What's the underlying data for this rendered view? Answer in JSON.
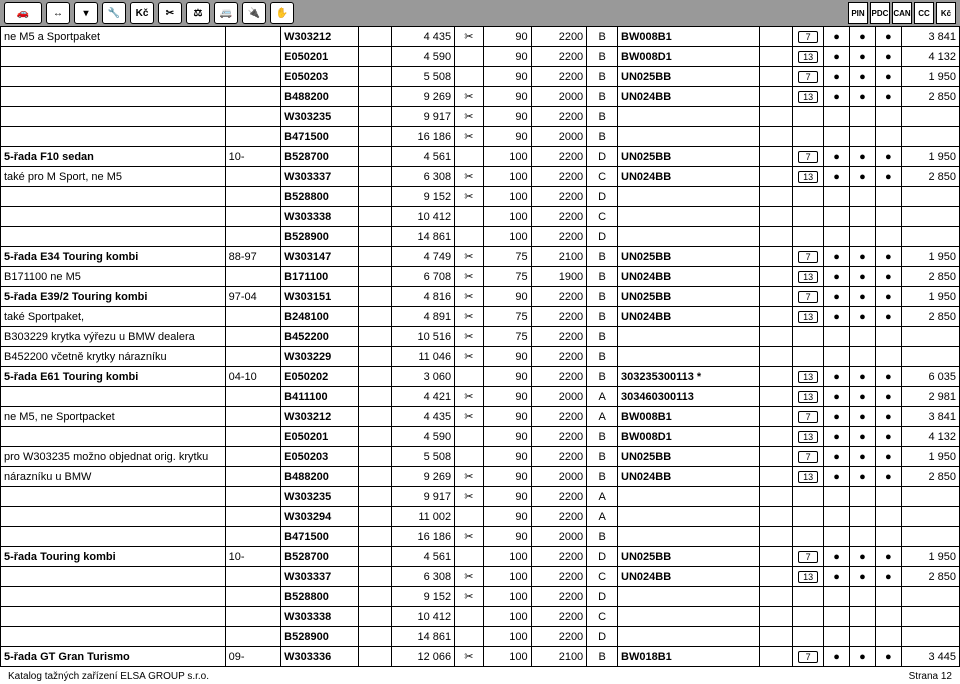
{
  "page_label": "Strana 12",
  "footer_text": "Katalog tažných zařízení ELSA GROUP s.r.o.",
  "header_tags": [
    "PIN",
    "PDC",
    "CAN",
    "CC",
    "Kč"
  ],
  "rows": [
    {
      "name": "ne M5 a Sportpaket",
      "year": "",
      "code": "W303212",
      "price": "4 435",
      "sc": "1",
      "w1": "90",
      "w2": "2200",
      "l": "B",
      "ref": "BW008B1",
      "n": "7",
      "d1": "●",
      "d2": "●",
      "d3": "●",
      "p2": "3 841"
    },
    {
      "name": "",
      "year": "",
      "code": "E050201",
      "price": "4 590",
      "sc": "",
      "w1": "90",
      "w2": "2200",
      "l": "B",
      "ref": "BW008D1",
      "n": "13",
      "d1": "●",
      "d2": "●",
      "d3": "●",
      "p2": "4 132"
    },
    {
      "name": "",
      "year": "",
      "code": "E050203",
      "price": "5 508",
      "sc": "",
      "w1": "90",
      "w2": "2200",
      "l": "B",
      "ref": "UN025BB",
      "n": "7",
      "d1": "●",
      "d2": "●",
      "d3": "●",
      "p2": "1 950"
    },
    {
      "name": "",
      "year": "",
      "code": "B488200",
      "price": "9 269",
      "sc": "1",
      "w1": "90",
      "w2": "2000",
      "l": "B",
      "ref": "UN024BB",
      "n": "13",
      "d1": "●",
      "d2": "●",
      "d3": "●",
      "p2": "2 850"
    },
    {
      "name": "",
      "year": "",
      "code": "W303235",
      "price": "9 917",
      "sc": "1",
      "w1": "90",
      "w2": "2200",
      "l": "B",
      "ref": "",
      "n": "",
      "d1": "",
      "d2": "",
      "d3": "",
      "p2": ""
    },
    {
      "name": "",
      "year": "",
      "code": "B471500",
      "price": "16 186",
      "sc": "1",
      "w1": "90",
      "w2": "2000",
      "l": "B",
      "ref": "",
      "n": "",
      "d1": "",
      "d2": "",
      "d3": "",
      "p2": ""
    },
    {
      "name": "5-řada F10 sedan",
      "bold": 1,
      "year": "10-",
      "code": "B528700",
      "price": "4 561",
      "sc": "",
      "w1": "100",
      "w2": "2200",
      "l": "D",
      "ref": "UN025BB",
      "n": "7",
      "d1": "●",
      "d2": "●",
      "d3": "●",
      "p2": "1 950"
    },
    {
      "name": "také pro M Sport, ne M5",
      "year": "",
      "code": "W303337",
      "price": "6 308",
      "sc": "1",
      "w1": "100",
      "w2": "2200",
      "l": "C",
      "ref": "UN024BB",
      "n": "13",
      "d1": "●",
      "d2": "●",
      "d3": "●",
      "p2": "2 850"
    },
    {
      "name": "",
      "year": "",
      "code": "B528800",
      "price": "9 152",
      "sc": "1",
      "w1": "100",
      "w2": "2200",
      "l": "D",
      "ref": "",
      "n": "",
      "d1": "",
      "d2": "",
      "d3": "",
      "p2": ""
    },
    {
      "name": "",
      "year": "",
      "code": "W303338",
      "price": "10 412",
      "sc": "",
      "w1": "100",
      "w2": "2200",
      "l": "C",
      "ref": "",
      "n": "",
      "d1": "",
      "d2": "",
      "d3": "",
      "p2": ""
    },
    {
      "name": "",
      "year": "",
      "code": "B528900",
      "price": "14 861",
      "sc": "",
      "w1": "100",
      "w2": "2200",
      "l": "D",
      "ref": "",
      "n": "",
      "d1": "",
      "d2": "",
      "d3": "",
      "p2": ""
    },
    {
      "name": "5-řada E34 Touring kombi",
      "bold": 1,
      "year": "88-97",
      "code": "W303147",
      "price": "4 749",
      "sc": "1",
      "w1": "75",
      "w2": "2100",
      "l": "B",
      "ref": "UN025BB",
      "n": "7",
      "d1": "●",
      "d2": "●",
      "d3": "●",
      "p2": "1 950"
    },
    {
      "name": "B171100 ne M5",
      "year": "",
      "code": "B171100",
      "price": "6 708",
      "sc": "1",
      "w1": "75",
      "w2": "1900",
      "l": "B",
      "ref": "UN024BB",
      "n": "13",
      "d1": "●",
      "d2": "●",
      "d3": "●",
      "p2": "2 850"
    },
    {
      "name": "5-řada E39/2 Touring kombi",
      "bold": 1,
      "year": "97-04",
      "code": "W303151",
      "price": "4 816",
      "sc": "1",
      "w1": "90",
      "w2": "2200",
      "l": "B",
      "ref": "UN025BB",
      "n": "7",
      "d1": "●",
      "d2": "●",
      "d3": "●",
      "p2": "1 950"
    },
    {
      "name": "také Sportpaket,",
      "year": "",
      "code": "B248100",
      "price": "4 891",
      "sc": "1",
      "w1": "75",
      "w2": "2200",
      "l": "B",
      "ref": "UN024BB",
      "n": "13",
      "d1": "●",
      "d2": "●",
      "d3": "●",
      "p2": "2 850"
    },
    {
      "name": "B303229 krytka výřezu u BMW dealera",
      "year": "",
      "code": "B452200",
      "price": "10 516",
      "sc": "1",
      "w1": "75",
      "w2": "2200",
      "l": "B",
      "ref": "",
      "n": "",
      "d1": "",
      "d2": "",
      "d3": "",
      "p2": ""
    },
    {
      "name": "B452200 včetně krytky nárazníku",
      "year": "",
      "code": "W303229",
      "price": "11 046",
      "sc": "1",
      "w1": "90",
      "w2": "2200",
      "l": "B",
      "ref": "",
      "n": "",
      "d1": "",
      "d2": "",
      "d3": "",
      "p2": ""
    },
    {
      "name": "5-řada E61 Touring kombi",
      "bold": 1,
      "year": "04-10",
      "code": "E050202",
      "price": "3 060",
      "sc": "",
      "w1": "90",
      "w2": "2200",
      "l": "B",
      "ref": "303235300113        *",
      "n": "13",
      "d1": "●",
      "d2": "●",
      "d3": "●",
      "p2": "6 035"
    },
    {
      "name": "",
      "year": "",
      "code": "B411100",
      "price": "4 421",
      "sc": "1",
      "w1": "90",
      "w2": "2000",
      "l": "A",
      "ref": "303460300113",
      "n": "13",
      "d1": "●",
      "d2": "●",
      "d3": "●",
      "p2": "2 981"
    },
    {
      "name": "ne M5, ne Sportpacket",
      "year": "",
      "code": "W303212",
      "price": "4 435",
      "sc": "1",
      "w1": "90",
      "w2": "2200",
      "l": "A",
      "ref": "BW008B1",
      "n": "7",
      "d1": "●",
      "d2": "●",
      "d3": "●",
      "p2": "3 841"
    },
    {
      "name": "",
      "year": "",
      "code": "E050201",
      "price": "4 590",
      "sc": "",
      "w1": "90",
      "w2": "2200",
      "l": "B",
      "ref": "BW008D1",
      "n": "13",
      "d1": "●",
      "d2": "●",
      "d3": "●",
      "p2": "4 132"
    },
    {
      "name": "pro W303235 možno objednat orig. krytku",
      "year": "",
      "code": "E050203",
      "price": "5 508",
      "sc": "",
      "w1": "90",
      "w2": "2200",
      "l": "B",
      "ref": "UN025BB",
      "n": "7",
      "d1": "●",
      "d2": "●",
      "d3": "●",
      "p2": "1 950"
    },
    {
      "name": "nárazníku u BMW",
      "year": "",
      "code": "B488200",
      "price": "9 269",
      "sc": "1",
      "w1": "90",
      "w2": "2000",
      "l": "B",
      "ref": "UN024BB",
      "n": "13",
      "d1": "●",
      "d2": "●",
      "d3": "●",
      "p2": "2 850"
    },
    {
      "name": "",
      "year": "",
      "code": "W303235",
      "price": "9 917",
      "sc": "1",
      "w1": "90",
      "w2": "2200",
      "l": "A",
      "ref": "",
      "n": "",
      "d1": "",
      "d2": "",
      "d3": "",
      "p2": ""
    },
    {
      "name": "",
      "year": "",
      "code": "W303294",
      "price": "11 002",
      "sc": "",
      "w1": "90",
      "w2": "2200",
      "l": "A",
      "ref": "",
      "n": "",
      "d1": "",
      "d2": "",
      "d3": "",
      "p2": ""
    },
    {
      "name": "",
      "year": "",
      "code": "B471500",
      "price": "16 186",
      "sc": "1",
      "w1": "90",
      "w2": "2000",
      "l": "B",
      "ref": "",
      "n": "",
      "d1": "",
      "d2": "",
      "d3": "",
      "p2": ""
    },
    {
      "name": "5-řada Touring kombi",
      "bold": 1,
      "year": "10-",
      "code": "B528700",
      "price": "4 561",
      "sc": "",
      "w1": "100",
      "w2": "2200",
      "l": "D",
      "ref": "UN025BB",
      "n": "7",
      "d1": "●",
      "d2": "●",
      "d3": "●",
      "p2": "1 950"
    },
    {
      "name": "",
      "year": "",
      "code": "W303337",
      "price": "6 308",
      "sc": "1",
      "w1": "100",
      "w2": "2200",
      "l": "C",
      "ref": "UN024BB",
      "n": "13",
      "d1": "●",
      "d2": "●",
      "d3": "●",
      "p2": "2 850"
    },
    {
      "name": "",
      "year": "",
      "code": "B528800",
      "price": "9 152",
      "sc": "1",
      "w1": "100",
      "w2": "2200",
      "l": "D",
      "ref": "",
      "n": "",
      "d1": "",
      "d2": "",
      "d3": "",
      "p2": ""
    },
    {
      "name": "",
      "year": "",
      "code": "W303338",
      "price": "10 412",
      "sc": "",
      "w1": "100",
      "w2": "2200",
      "l": "C",
      "ref": "",
      "n": "",
      "d1": "",
      "d2": "",
      "d3": "",
      "p2": ""
    },
    {
      "name": "",
      "year": "",
      "code": "B528900",
      "price": "14 861",
      "sc": "",
      "w1": "100",
      "w2": "2200",
      "l": "D",
      "ref": "",
      "n": "",
      "d1": "",
      "d2": "",
      "d3": "",
      "p2": ""
    },
    {
      "name": "5-řada GT Gran Turismo",
      "bold": 1,
      "year": "09-",
      "code": "W303336",
      "price": "12 066",
      "sc": "1",
      "w1": "100",
      "w2": "2100",
      "l": "B",
      "ref": "BW018B1",
      "n": "7",
      "d1": "●",
      "d2": "●",
      "d3": "●",
      "p2": "3 445"
    }
  ]
}
